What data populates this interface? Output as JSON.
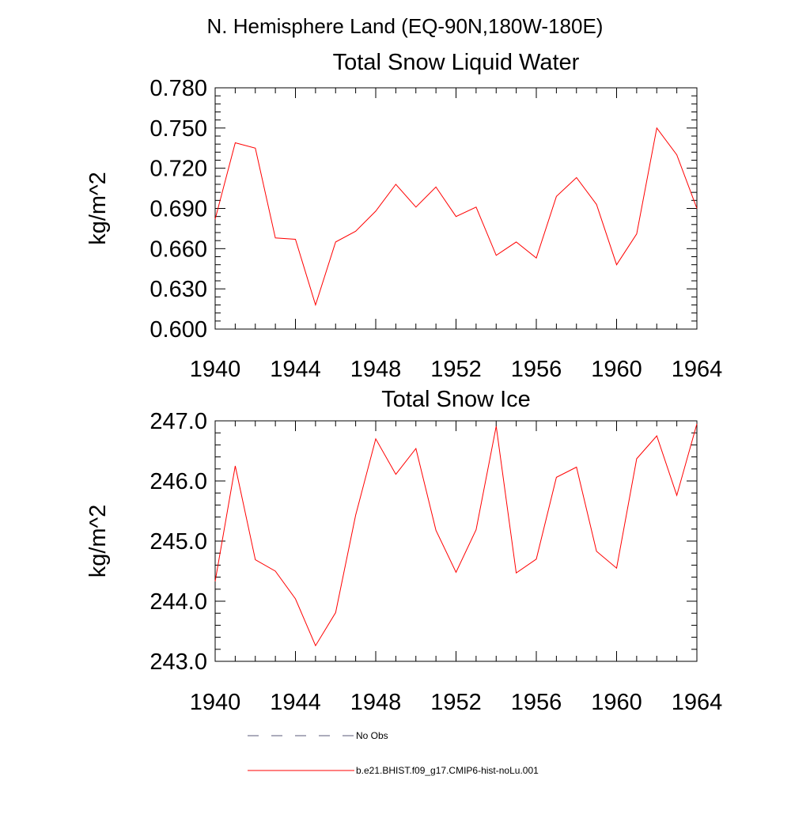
{
  "figure": {
    "title": "N. Hemisphere Land (EQ-90N,180W-180E)"
  },
  "chart_data": [
    {
      "type": "line",
      "title": "Total Snow Liquid Water",
      "xlabel": "",
      "ylabel": "kg/m^2",
      "xlim": [
        1940,
        1964
      ],
      "ylim": [
        0.6,
        0.78
      ],
      "x_ticks": [
        "1940",
        "1944",
        "1948",
        "1952",
        "1956",
        "1960",
        "1964"
      ],
      "y_ticks": [
        "0.600",
        "0.630",
        "0.660",
        "0.690",
        "0.720",
        "0.750",
        "0.780"
      ],
      "grid": false,
      "x": [
        1940,
        1941,
        1942,
        1943,
        1944,
        1945,
        1946,
        1947,
        1948,
        1949,
        1950,
        1951,
        1952,
        1953,
        1954,
        1955,
        1956,
        1957,
        1958,
        1959,
        1960,
        1961,
        1962,
        1963,
        1964
      ],
      "series": [
        {
          "name": "b.e21.BHIST.f09_g17.CMIP6-hist-noLu.001",
          "color": "#ff0000",
          "values": [
            0.682,
            0.739,
            0.735,
            0.668,
            0.667,
            0.618,
            0.665,
            0.673,
            0.688,
            0.708,
            0.691,
            0.706,
            0.684,
            0.691,
            0.655,
            0.665,
            0.653,
            0.699,
            0.713,
            0.693,
            0.648,
            0.671,
            0.75,
            0.73,
            0.69
          ]
        }
      ]
    },
    {
      "type": "line",
      "title": "Total Snow Ice",
      "xlabel": "",
      "ylabel": "kg/m^2",
      "xlim": [
        1940,
        1964
      ],
      "ylim": [
        243.0,
        247.0
      ],
      "x_ticks": [
        "1940",
        "1944",
        "1948",
        "1952",
        "1956",
        "1960",
        "1964"
      ],
      "y_ticks": [
        "243.0",
        "244.0",
        "245.0",
        "246.0",
        "247.0"
      ],
      "grid": false,
      "x": [
        1940,
        1941,
        1942,
        1943,
        1944,
        1945,
        1946,
        1947,
        1948,
        1949,
        1950,
        1951,
        1952,
        1953,
        1954,
        1955,
        1956,
        1957,
        1958,
        1959,
        1960,
        1961,
        1962,
        1963,
        1964
      ],
      "series": [
        {
          "name": "b.e21.BHIST.f09_g17.CMIP6-hist-noLu.001",
          "color": "#ff0000",
          "values": [
            244.33,
            246.25,
            244.69,
            244.5,
            244.04,
            243.26,
            243.81,
            245.43,
            246.7,
            246.11,
            246.54,
            245.18,
            244.48,
            245.19,
            246.91,
            244.47,
            244.7,
            246.06,
            246.23,
            244.83,
            244.55,
            246.37,
            246.75,
            245.76,
            246.95
          ]
        }
      ]
    }
  ],
  "legend": [
    {
      "label": "No Obs",
      "style": "dashed",
      "color": "#5a5a78"
    },
    {
      "label": "b.e21.BHIST.f09_g17.CMIP6-hist-noLu.001",
      "style": "solid",
      "color": "#ff0000"
    }
  ]
}
